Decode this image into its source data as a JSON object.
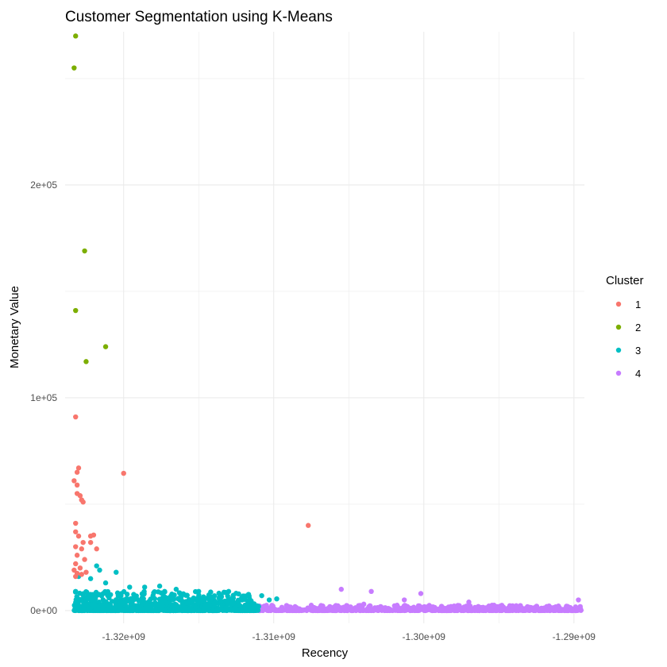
{
  "chart_data": {
    "type": "scatter",
    "title": "Customer Segmentation using K-Means",
    "xlabel": "Recency",
    "ylabel": "Monetary Value",
    "xlim": [
      -1323900000.0,
      -1289300000.0
    ],
    "ylim": [
      -6000,
      272000
    ],
    "x_ticks": [
      -1320000000.0,
      -1310000000.0,
      -1300000000.0,
      -1290000000.0
    ],
    "x_tick_labels": [
      "-1.32e+09",
      "-1.31e+09",
      "-1.30e+09",
      "-1.29e+09"
    ],
    "y_ticks": [
      0,
      100000,
      200000
    ],
    "y_tick_labels": [
      "0e+00",
      "1e+05",
      "2e+05"
    ],
    "grid": true,
    "legend": {
      "title": "Cluster",
      "position": "right"
    },
    "series": [
      {
        "name": "1",
        "color": "#F8766D",
        "points": [
          [
            -1323200000.0,
            91000
          ],
          [
            -1323000000.0,
            67000
          ],
          [
            -1323100000.0,
            65000
          ],
          [
            -1323300000.0,
            61000
          ],
          [
            -1323100000.0,
            59000
          ],
          [
            -1323100000.0,
            55000
          ],
          [
            -1322900000.0,
            54000
          ],
          [
            -1322800000.0,
            52000
          ],
          [
            -1322700000.0,
            51000
          ],
          [
            -1320000000.0,
            64500
          ],
          [
            -1307700000.0,
            40000
          ],
          [
            -1323200000.0,
            41000
          ],
          [
            -1323200000.0,
            37000
          ],
          [
            -1323000000.0,
            35000
          ],
          [
            -1322200000.0,
            35000
          ],
          [
            -1322000000.0,
            35500
          ],
          [
            -1322700000.0,
            32000
          ],
          [
            -1322200000.0,
            32000
          ],
          [
            -1323200000.0,
            30000
          ],
          [
            -1322800000.0,
            29000
          ],
          [
            -1321800000.0,
            29000
          ],
          [
            -1323100000.0,
            26000
          ],
          [
            -1322600000.0,
            24000
          ],
          [
            -1323200000.0,
            22000
          ],
          [
            -1322900000.0,
            20000
          ],
          [
            -1323300000.0,
            19000
          ],
          [
            -1323100000.0,
            17500
          ],
          [
            -1322800000.0,
            17000
          ],
          [
            -1322500000.0,
            18000
          ],
          [
            -1323200000.0,
            16000
          ]
        ]
      },
      {
        "name": "2",
        "color": "#7CAE00",
        "points": [
          [
            -1323200000.0,
            270000
          ],
          [
            -1323300000.0,
            255000
          ],
          [
            -1322600000.0,
            169000
          ],
          [
            -1323200000.0,
            141000
          ],
          [
            -1321200000.0,
            124000
          ],
          [
            -1322500000.0,
            117000
          ]
        ]
      },
      {
        "name": "3",
        "color": "#00BFC4",
        "band": {
          "x_from": -1323300000.0,
          "x_to": -1311000000.0,
          "y_max": 9000,
          "count": 900,
          "seed": 7
        },
        "points": [
          [
            -1321800000.0,
            21000
          ],
          [
            -1321600000.0,
            19000
          ],
          [
            -1320500000.0,
            18000
          ],
          [
            -1323000000.0,
            16000
          ],
          [
            -1322200000.0,
            15000
          ],
          [
            -1321200000.0,
            13000
          ],
          [
            -1319600000.0,
            11000
          ],
          [
            -1318600000.0,
            11000
          ],
          [
            -1317600000.0,
            11500
          ],
          [
            -1316500000.0,
            10000
          ],
          [
            -1315000000.0,
            9000
          ],
          [
            -1313500000.0,
            7000
          ],
          [
            -1310800000.0,
            7000
          ],
          [
            -1309800000.0,
            5500
          ],
          [
            -1310300000.0,
            5000
          ]
        ]
      },
      {
        "name": "4",
        "color": "#C77CFF",
        "band": {
          "x_from": -1311000000.0,
          "x_to": -1289500000.0,
          "y_max": 2500,
          "count": 700,
          "seed": 13
        },
        "points": [
          [
            -1305500000.0,
            10000
          ],
          [
            -1303500000.0,
            9000
          ],
          [
            -1300200000.0,
            8000
          ],
          [
            -1301300000.0,
            5000
          ],
          [
            -1297000000.0,
            4000
          ],
          [
            -1289700000.0,
            5000
          ],
          [
            -1304000000.0,
            3000
          ],
          [
            -1307500000.0,
            2500
          ]
        ]
      }
    ]
  }
}
